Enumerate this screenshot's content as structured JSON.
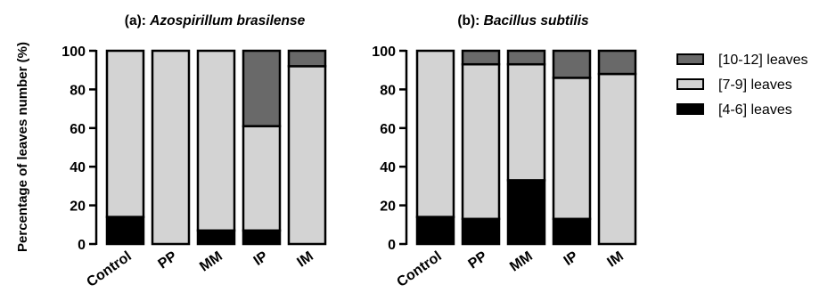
{
  "chart_data": {
    "type": "bar",
    "stacked": true,
    "percent": true,
    "ylabel": "Percentage of leaves number (%)",
    "ylim": [
      0,
      100
    ],
    "yticks": [
      0,
      20,
      40,
      60,
      80,
      100
    ],
    "categories": [
      "Control",
      "PP",
      "MM",
      "IP",
      "IM"
    ],
    "legend": {
      "position": "right",
      "entries": [
        {
          "name": "[10-12] leaves",
          "color": "#696969"
        },
        {
          "name": "[7-9] leaves",
          "color": "#d3d3d3"
        },
        {
          "name": "[4-6] leaves",
          "color": "#000000"
        }
      ]
    },
    "panels": [
      {
        "label": "(a):",
        "species": "Azospirillum brasilense",
        "series": [
          {
            "name": "[4-6] leaves",
            "values": [
              14,
              0,
              7,
              7,
              0
            ]
          },
          {
            "name": "[7-9] leaves",
            "values": [
              86,
              100,
              93,
              54,
              92
            ]
          },
          {
            "name": "[10-12] leaves",
            "values": [
              0,
              0,
              0,
              39,
              8
            ]
          }
        ]
      },
      {
        "label": "(b):",
        "species": "Bacillus subtilis",
        "series": [
          {
            "name": "[4-6] leaves",
            "values": [
              14,
              13,
              33,
              13,
              0
            ]
          },
          {
            "name": "[7-9] leaves",
            "values": [
              86,
              80,
              60,
              73,
              88
            ]
          },
          {
            "name": "[10-12] leaves",
            "values": [
              0,
              7,
              7,
              14,
              12
            ]
          }
        ]
      }
    ]
  }
}
